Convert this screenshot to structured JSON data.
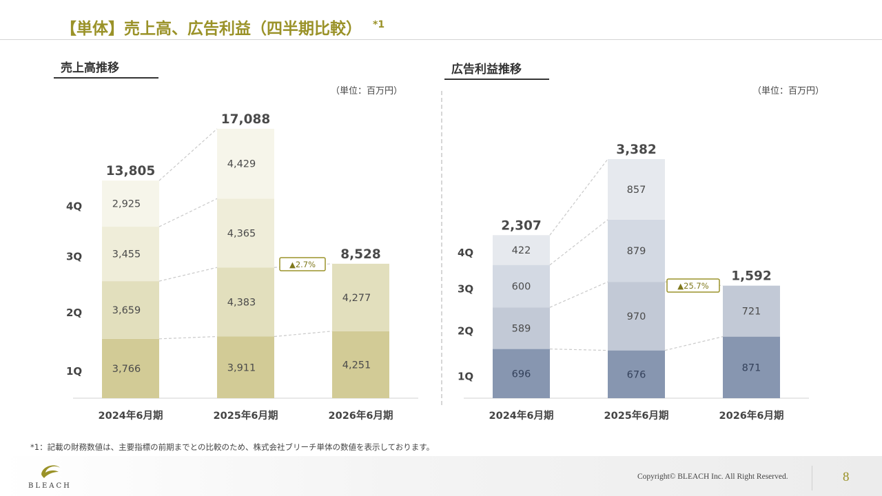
{
  "page": {
    "title": "【単体】売上高、広告利益（四半期比較）",
    "title_note": "*1",
    "footnote": "*1：記載の財務数値は、主要指標の前期までとの比較のため、株式会社ブリーチ単体の数値を表示しております。",
    "copyright": "Copyright© BLEACH Inc. All Right Reserved.",
    "page_number": "8",
    "logo_text": "BLEACH"
  },
  "colors": {
    "accent": "#9a9228",
    "sales": [
      "#d2cb96",
      "#e2dfbd",
      "#efedd9",
      "#f6f5ea"
    ],
    "profit": [
      "#8796b0",
      "#c2c9d6",
      "#d3d9e3",
      "#e6e9ee"
    ]
  },
  "chart_data": [
    {
      "type": "bar",
      "stacked": true,
      "title": "売上高推移",
      "unit": "（単位：百万円）",
      "categories": [
        "2024年6月期",
        "2025年6月期",
        "2026年6月期"
      ],
      "series": [
        {
          "name": "1Q",
          "values": [
            3766,
            3911,
            4251
          ]
        },
        {
          "name": "2Q",
          "values": [
            3659,
            4383,
            4277
          ]
        },
        {
          "name": "3Q",
          "values": [
            3455,
            4365,
            null
          ]
        },
        {
          "name": "4Q",
          "values": [
            2925,
            4429,
            null
          ]
        }
      ],
      "value_labels": [
        [
          "3,766",
          "3,659",
          "3,455",
          "2,925"
        ],
        [
          "3,911",
          "4,383",
          "4,365",
          "4,429"
        ],
        [
          "4,251",
          "4,277",
          "",
          ""
        ]
      ],
      "totals": [
        "13,805",
        "17,088",
        "8,528"
      ],
      "growth_badge": "▲2.7%",
      "ylim": [
        0,
        18000
      ]
    },
    {
      "type": "bar",
      "stacked": true,
      "title": "広告利益推移",
      "unit": "（単位：百万円）",
      "categories": [
        "2024年6月期",
        "2025年6月期",
        "2026年6月期"
      ],
      "series": [
        {
          "name": "1Q",
          "values": [
            696,
            676,
            871
          ]
        },
        {
          "name": "2Q",
          "values": [
            589,
            970,
            721
          ]
        },
        {
          "name": "3Q",
          "values": [
            600,
            879,
            null
          ]
        },
        {
          "name": "4Q",
          "values": [
            422,
            857,
            null
          ]
        }
      ],
      "value_labels": [
        [
          "696",
          "589",
          "600",
          "422"
        ],
        [
          "676",
          "970",
          "879",
          "857"
        ],
        [
          "871",
          "721",
          "",
          ""
        ]
      ],
      "totals": [
        "2,307",
        "3,382",
        "1,592"
      ],
      "growth_badge": "▲25.7%",
      "ylim": [
        0,
        3500
      ]
    }
  ]
}
